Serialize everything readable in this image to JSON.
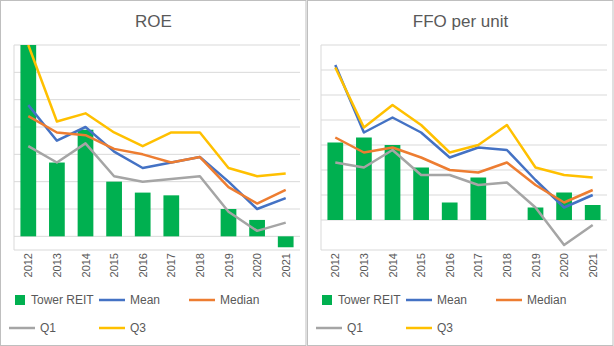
{
  "chart_data": [
    {
      "type": "bar",
      "title": "ROE",
      "categories": [
        "2012",
        "2013",
        "2014",
        "2015",
        "2016",
        "2017",
        "2018",
        "2019",
        "2020",
        "2021"
      ],
      "series": [
        {
          "name": "Tower REIT",
          "type": "bar",
          "color": "#00b050",
          "values": [
            7.0,
            2.7,
            3.9,
            2.0,
            1.6,
            1.5,
            null,
            1.0,
            0.6,
            -0.4
          ]
        },
        {
          "name": "Mean",
          "type": "line",
          "color": "#4472c4",
          "values": [
            4.8,
            3.5,
            4.0,
            3.1,
            2.5,
            2.7,
            2.9,
            2.0,
            1.0,
            1.4
          ]
        },
        {
          "name": "Median",
          "type": "line",
          "color": "#ed7d31",
          "values": [
            4.4,
            3.8,
            3.7,
            3.2,
            3.0,
            2.7,
            2.9,
            1.8,
            1.2,
            1.7
          ]
        },
        {
          "name": "Q1",
          "type": "line",
          "color": "#a5a5a5",
          "values": [
            3.3,
            2.7,
            3.4,
            2.2,
            2.0,
            2.1,
            2.2,
            0.9,
            0.2,
            0.5
          ]
        },
        {
          "name": "Q3",
          "type": "line",
          "color": "#ffc000",
          "values": [
            7.0,
            4.2,
            4.5,
            3.8,
            3.3,
            3.8,
            3.8,
            2.5,
            2.2,
            2.3
          ]
        }
      ],
      "ylim": [
        -0.5,
        7
      ],
      "yticks": [
        0,
        1,
        2,
        3,
        4,
        5,
        6,
        7
      ],
      "grid": true,
      "tick_labels": "x",
      "legend": "bottom"
    },
    {
      "type": "bar",
      "title": "FFO per unit",
      "categories": [
        "2012",
        "2013",
        "2014",
        "2015",
        "2016",
        "2017",
        "2018",
        "2019",
        "2020",
        "2021"
      ],
      "series": [
        {
          "name": "Tower REIT",
          "type": "bar",
          "color": "#00b050",
          "values": [
            3.1,
            3.3,
            3.0,
            2.1,
            0.7,
            1.7,
            null,
            0.5,
            1.1,
            0.6
          ]
        },
        {
          "name": "Mean",
          "type": "line",
          "color": "#4472c4",
          "values": [
            6.2,
            3.5,
            4.1,
            3.5,
            2.5,
            2.9,
            2.8,
            1.6,
            0.5,
            1.0
          ]
        },
        {
          "name": "Median",
          "type": "line",
          "color": "#ed7d31",
          "values": [
            3.3,
            2.7,
            2.9,
            2.5,
            2.0,
            1.9,
            2.3,
            1.4,
            0.7,
            1.2
          ]
        },
        {
          "name": "Q1",
          "type": "line",
          "color": "#a5a5a5",
          "values": [
            2.3,
            2.1,
            2.8,
            1.8,
            1.8,
            1.4,
            1.5,
            0.5,
            -1.0,
            -0.2
          ]
        },
        {
          "name": "Q3",
          "type": "line",
          "color": "#ffc000",
          "values": [
            6.1,
            3.7,
            4.6,
            3.8,
            2.7,
            3.0,
            3.8,
            2.1,
            1.8,
            1.7
          ]
        }
      ],
      "ylim": [
        -1.2,
        7
      ],
      "yticks": [
        0,
        1,
        2,
        3,
        4,
        5,
        6,
        7
      ],
      "grid": true,
      "tick_labels": "x",
      "legend": "bottom"
    }
  ]
}
